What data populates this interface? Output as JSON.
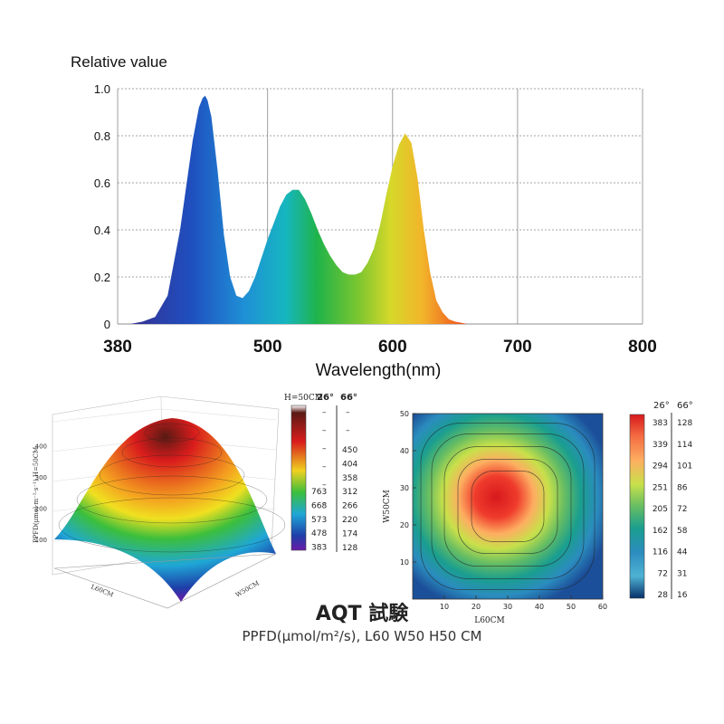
{
  "caption": {
    "title": "AQT 試験",
    "subtitle": "PPFD(µmol/m²/s), L60 W50 H50 CM"
  },
  "chart_data": [
    {
      "type": "area",
      "title": "Relative value",
      "xlabel": "Wavelength(nm)",
      "ylabel": "",
      "xlim": [
        380,
        800
      ],
      "ylim": [
        0,
        1.0
      ],
      "x_ticks": [
        "380",
        "500",
        "600",
        "700",
        "800"
      ],
      "y_ticks": [
        "0",
        "0.2",
        "0.4",
        "0.6",
        "0.8",
        "1.0"
      ],
      "grid": true,
      "x": [
        380,
        390,
        400,
        410,
        420,
        430,
        440,
        445,
        448,
        450,
        452,
        455,
        460,
        465,
        470,
        475,
        480,
        485,
        490,
        495,
        500,
        505,
        510,
        515,
        520,
        525,
        530,
        535,
        540,
        545,
        550,
        555,
        560,
        565,
        570,
        575,
        580,
        585,
        590,
        595,
        600,
        605,
        610,
        615,
        620,
        625,
        630,
        635,
        640,
        645,
        650,
        660,
        670,
        680,
        690,
        700,
        720,
        740,
        760,
        780,
        800
      ],
      "values": [
        0,
        0.0,
        0.01,
        0.03,
        0.12,
        0.4,
        0.78,
        0.92,
        0.96,
        0.97,
        0.95,
        0.88,
        0.65,
        0.38,
        0.2,
        0.12,
        0.11,
        0.14,
        0.2,
        0.28,
        0.36,
        0.43,
        0.5,
        0.55,
        0.57,
        0.57,
        0.53,
        0.47,
        0.4,
        0.34,
        0.29,
        0.25,
        0.22,
        0.21,
        0.21,
        0.22,
        0.26,
        0.32,
        0.42,
        0.55,
        0.67,
        0.76,
        0.81,
        0.77,
        0.62,
        0.4,
        0.22,
        0.1,
        0.05,
        0.02,
        0.01,
        0.0,
        0,
        0,
        0,
        0,
        0,
        0,
        0,
        0,
        0
      ]
    },
    {
      "type": "surface",
      "title": "H=50CM",
      "zlabel": "PPFD(μmol·m⁻²·s⁻¹) H=50CM",
      "x_label": "L60CM",
      "y_label": "W50CM",
      "z_ticks": [
        "100",
        "200",
        "300",
        "400"
      ],
      "peak_value": 450,
      "legend": {
        "header": [
          "26°",
          "66°"
        ],
        "col26": [
          "763",
          "668",
          "573",
          "478",
          "383"
        ],
        "col66": [
          "450",
          "404",
          "358",
          "312",
          "266",
          "220",
          "174",
          "128"
        ],
        "dashes": [
          "–",
          "–",
          "–",
          "–",
          "–",
          "–"
        ]
      }
    },
    {
      "type": "heatmap",
      "xlabel": "L60CM",
      "ylabel": "W50CM",
      "xlim": [
        0,
        60
      ],
      "ylim": [
        0,
        50
      ],
      "x_ticks": [
        "10",
        "20",
        "30",
        "40",
        "50",
        "60"
      ],
      "y_ticks": [
        "10",
        "20",
        "30",
        "40",
        "50"
      ],
      "center": [
        30,
        25
      ],
      "legend": {
        "header": [
          "26°",
          "66°"
        ],
        "col26": [
          "383",
          "339",
          "294",
          "251",
          "205",
          "162",
          "116",
          "72",
          "28"
        ],
        "col66": [
          "128",
          "114",
          "101",
          "86",
          "72",
          "58",
          "44",
          "31",
          "16"
        ],
        "colors": [
          "#d7191c",
          "#f46d43",
          "#fdae61",
          "#c8e04a",
          "#66bd63",
          "#1a9e8f",
          "#2b8cbe",
          "#4eb3d3",
          "#08306b"
        ]
      }
    }
  ]
}
